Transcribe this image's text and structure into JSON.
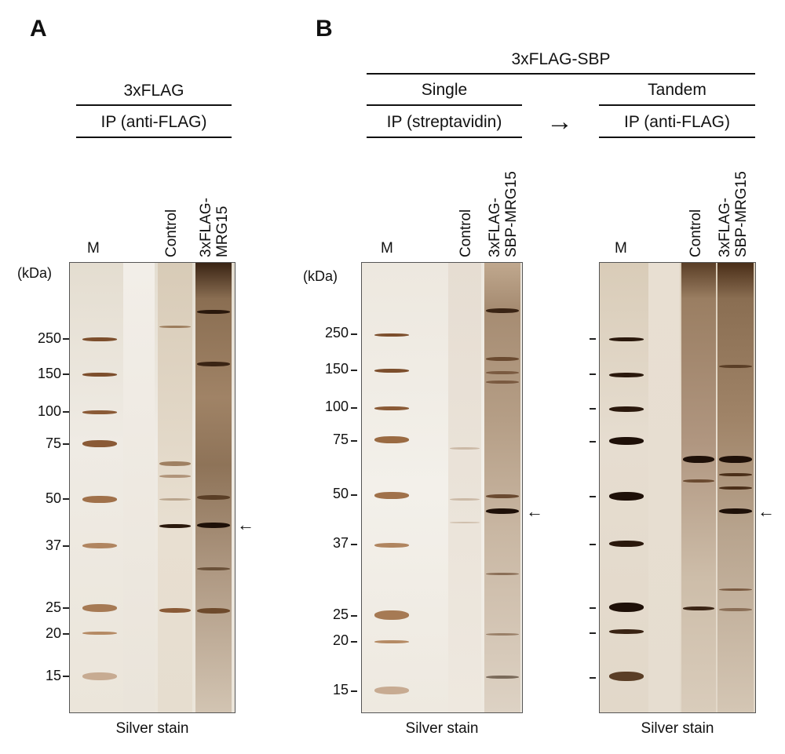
{
  "panels": {
    "A": {
      "letter": "A",
      "construct": "3xFLAG",
      "ip": "IP (anti-FLAG)",
      "lanes": {
        "marker": "M",
        "control": "Control",
        "sample_line1": "3xFLAG-",
        "sample_line2": "MRG15"
      },
      "unit": "(kDa)",
      "mw": [
        "250",
        "150",
        "100",
        "75",
        "50",
        "37",
        "25",
        "20",
        "15"
      ],
      "stain": "Silver stain"
    },
    "B": {
      "letter": "B",
      "construct": "3xFLAG-SBP",
      "single": {
        "title": "Single",
        "ip": "IP (streptavidin)",
        "lanes": {
          "marker": "M",
          "control": "Control",
          "sample_line1": "3xFLAG-",
          "sample_line2": "SBP-MRG15"
        },
        "unit": "(kDa)",
        "mw": [
          "250",
          "150",
          "100",
          "75",
          "50",
          "37",
          "25",
          "20",
          "15"
        ],
        "stain": "Silver stain"
      },
      "tandem": {
        "title": "Tandem",
        "ip": "IP (anti-FLAG)",
        "lanes": {
          "marker": "M",
          "control": "Control",
          "sample_line1": "3xFLAG-",
          "sample_line2": "SBP-MRG15"
        },
        "stain": "Silver stain"
      },
      "step_arrow": "→"
    }
  },
  "band_arrow": "←",
  "colors": {
    "gel_bg": "#ece6da",
    "marker_band": "#8a5a36",
    "dark_band": "#2a180c",
    "mid_band": "#7a5a40",
    "light_band": "#b9a48c"
  }
}
